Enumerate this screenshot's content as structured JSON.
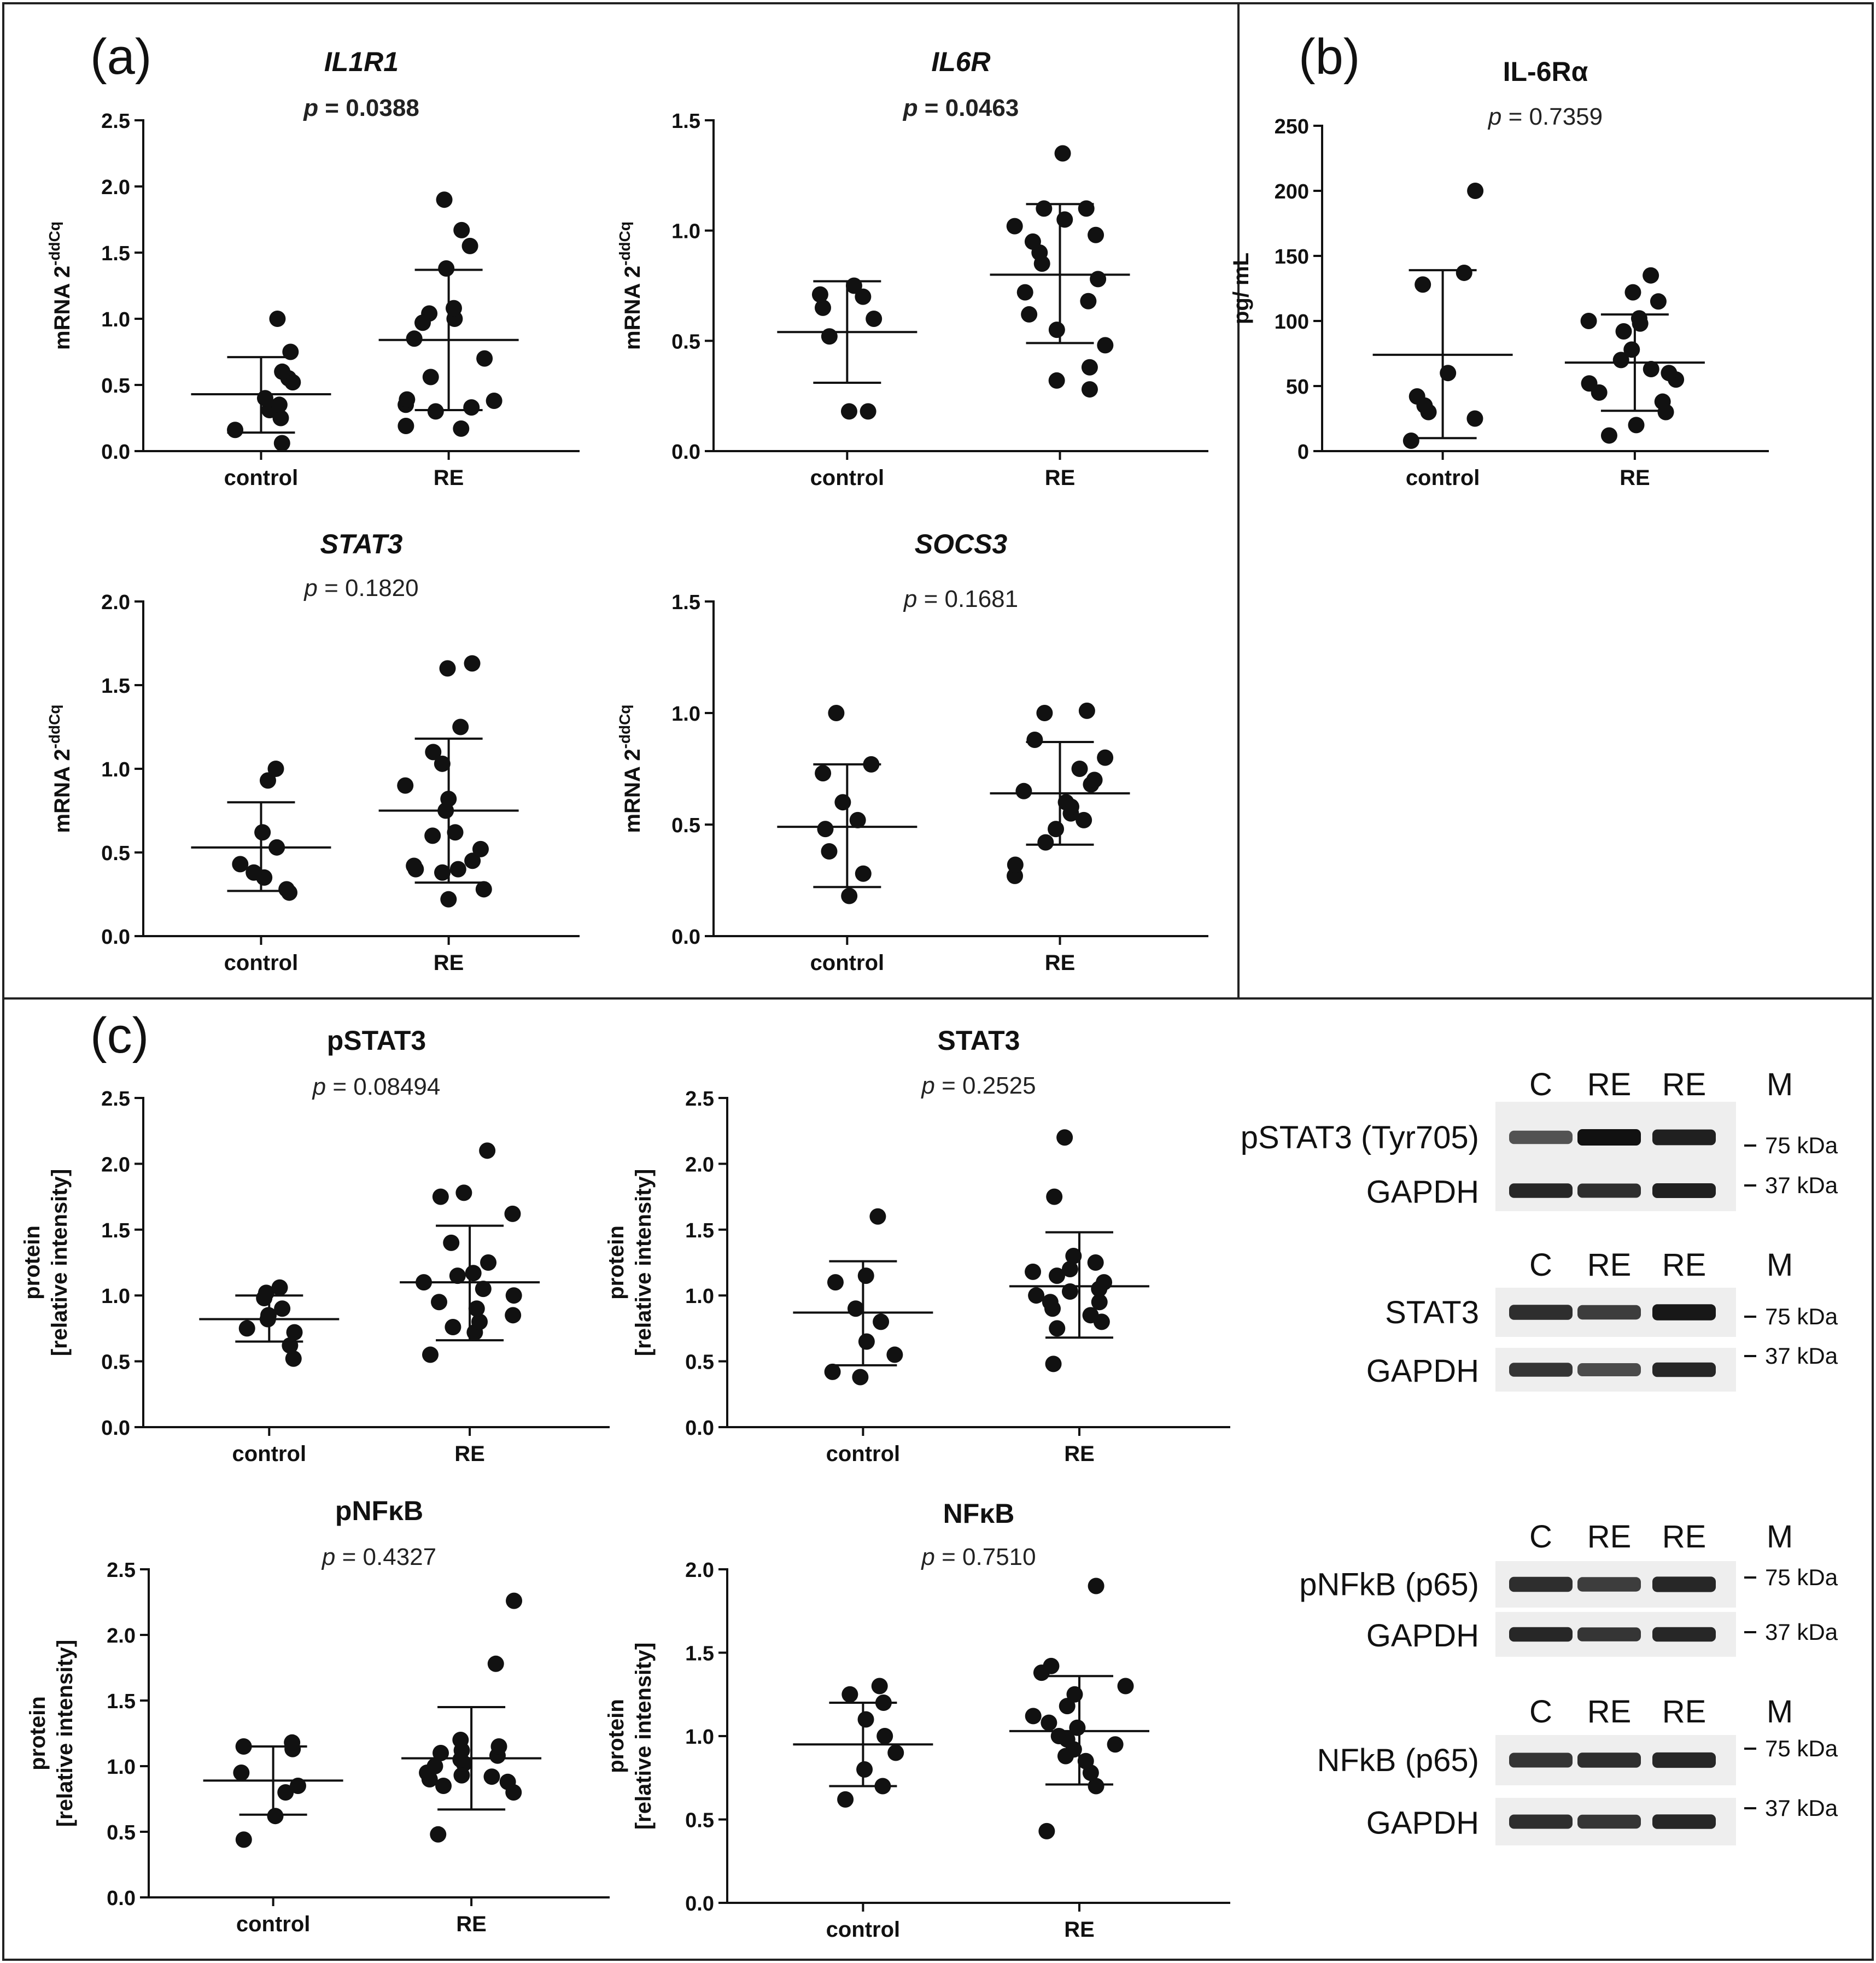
{
  "panel_labels": {
    "a": "(a)",
    "b": "(b)",
    "c": "(c)"
  },
  "units": {
    "kda75": "75 kDa",
    "kda37": "37 kDa"
  },
  "chart_data": [
    {
      "id": "il1r1",
      "panel": "a",
      "type": "scatter",
      "title": "IL1R1",
      "title_italic": true,
      "pvalue": "0.0388",
      "p_bold": true,
      "ylabel_main": "mRNA 2",
      "ylabel_sup": "-ddCq",
      "categories": [
        "control",
        "RE"
      ],
      "ylim": [
        0,
        2.5
      ],
      "yticks": [
        "0.0",
        "0.5",
        "1.0",
        "1.5",
        "2.0",
        "2.5"
      ],
      "points": [
        [
          0.06,
          0.16,
          0.25,
          0.31,
          0.35,
          0.4,
          0.52,
          0.55,
          0.6,
          0.75,
          1.0
        ],
        [
          0.17,
          0.19,
          0.3,
          0.33,
          0.35,
          0.38,
          0.39,
          0.56,
          0.7,
          0.85,
          1.0,
          1.04,
          1.08,
          1.38,
          1.55,
          1.67,
          1.9,
          0.97
        ]
      ],
      "mean": [
        0.43,
        0.84
      ],
      "sd_low": [
        0.14,
        0.31
      ],
      "sd_high": [
        0.71,
        1.37
      ]
    },
    {
      "id": "il6r",
      "panel": "a",
      "type": "scatter",
      "title": "IL6R",
      "title_italic": true,
      "pvalue": "0.0463",
      "p_bold": true,
      "ylabel_main": "mRNA 2",
      "ylabel_sup": "-ddCq",
      "categories": [
        "control",
        "RE"
      ],
      "ylim": [
        0,
        1.5
      ],
      "yticks": [
        "0.0",
        "0.5",
        "1.0",
        "1.5"
      ],
      "points": [
        [
          0.18,
          0.18,
          0.52,
          0.6,
          0.65,
          0.7,
          0.71,
          0.75
        ],
        [
          0.28,
          0.32,
          0.38,
          0.48,
          0.55,
          0.62,
          0.68,
          0.78,
          0.85,
          0.9,
          0.95,
          1.02,
          1.05,
          1.1,
          1.1,
          1.35,
          0.72,
          0.98
        ]
      ],
      "mean": [
        0.54,
        0.8
      ],
      "sd_low": [
        0.31,
        0.49
      ],
      "sd_high": [
        0.77,
        1.12
      ]
    },
    {
      "id": "stat3_mrna",
      "panel": "a",
      "type": "scatter",
      "title": "STAT3",
      "title_italic": true,
      "pvalue": "0.1820",
      "p_bold": false,
      "ylabel_main": "mRNA 2",
      "ylabel_sup": "-ddCq",
      "categories": [
        "control",
        "RE"
      ],
      "ylim": [
        0,
        2.0
      ],
      "yticks": [
        "0.0",
        "0.5",
        "1.0",
        "1.5",
        "2.0"
      ],
      "points": [
        [
          0.26,
          0.28,
          0.35,
          0.38,
          0.43,
          0.53,
          0.62,
          0.93,
          1.0
        ],
        [
          0.22,
          0.28,
          0.38,
          0.4,
          0.42,
          0.45,
          0.52,
          0.6,
          0.75,
          0.82,
          0.9,
          1.03,
          1.1,
          1.25,
          1.6,
          1.63,
          0.62,
          0.4
        ]
      ],
      "mean": [
        0.53,
        0.75
      ],
      "sd_low": [
        0.27,
        0.32
      ],
      "sd_high": [
        0.8,
        1.18
      ]
    },
    {
      "id": "socs3",
      "panel": "a",
      "type": "scatter",
      "title": "SOCS3",
      "title_italic": true,
      "pvalue": "0.1681",
      "p_bold": false,
      "ylabel_main": "mRNA 2",
      "ylabel_sup": "-ddCq",
      "categories": [
        "control",
        "RE"
      ],
      "ylim": [
        0,
        1.5
      ],
      "yticks": [
        "0.0",
        "0.5",
        "1.0",
        "1.5"
      ],
      "points": [
        [
          0.18,
          0.28,
          0.38,
          0.48,
          0.52,
          0.6,
          0.73,
          0.77,
          1.0
        ],
        [
          0.27,
          0.32,
          0.42,
          0.48,
          0.52,
          0.55,
          0.6,
          0.65,
          0.68,
          0.75,
          0.8,
          0.88,
          1.0,
          1.01,
          0.58,
          0.7
        ]
      ],
      "mean": [
        0.49,
        0.64
      ],
      "sd_low": [
        0.22,
        0.41
      ],
      "sd_high": [
        0.77,
        0.87
      ]
    },
    {
      "id": "il6ra",
      "panel": "b",
      "type": "scatter",
      "title": "IL-6Rα",
      "title_italic": false,
      "pvalue": "0.7359",
      "p_bold": false,
      "ylabel_main": "pg/ mL",
      "ylabel_sup": "",
      "categories": [
        "control",
        "RE"
      ],
      "ylim": [
        0,
        250
      ],
      "yticks": [
        "0",
        "50",
        "100",
        "150",
        "200",
        "250"
      ],
      "points": [
        [
          8,
          25,
          30,
          35,
          42,
          60,
          128,
          137,
          200
        ],
        [
          12,
          20,
          30,
          38,
          45,
          52,
          55,
          60,
          63,
          70,
          78,
          92,
          100,
          102,
          115,
          122,
          135,
          98
        ]
      ],
      "mean": [
        74,
        68
      ],
      "sd_low": [
        10,
        31
      ],
      "sd_high": [
        139,
        105
      ]
    },
    {
      "id": "pstat3",
      "panel": "c",
      "type": "scatter",
      "title": "pSTAT3",
      "title_italic": false,
      "pvalue": "0.08494",
      "p_bold": false,
      "ylabel_main": "protein",
      "ylabel_second": "[relative intensity]",
      "categories": [
        "control",
        "RE"
      ],
      "ylim": [
        0,
        2.5
      ],
      "yticks": [
        "0.0",
        "0.5",
        "1.0",
        "1.5",
        "2.0",
        "2.5"
      ],
      "points": [
        [
          0.52,
          0.62,
          0.72,
          0.75,
          0.82,
          0.85,
          0.9,
          0.98,
          1.02,
          1.06
        ],
        [
          0.55,
          0.72,
          0.76,
          0.8,
          0.85,
          0.9,
          0.95,
          1.0,
          1.05,
          1.1,
          1.15,
          1.17,
          1.25,
          1.4,
          1.62,
          1.75,
          1.78,
          2.1
        ]
      ],
      "mean": [
        0.82,
        1.1
      ],
      "sd_low": [
        0.65,
        0.66
      ],
      "sd_high": [
        1.0,
        1.53
      ]
    },
    {
      "id": "stat3_prot",
      "panel": "c",
      "type": "scatter",
      "title": "STAT3",
      "title_italic": false,
      "pvalue": "0.2525",
      "p_bold": false,
      "ylabel_main": "protein",
      "ylabel_second": "[relative intensity]",
      "categories": [
        "control",
        "RE"
      ],
      "ylim": [
        0,
        2.5
      ],
      "yticks": [
        "0.0",
        "0.5",
        "1.0",
        "1.5",
        "2.0",
        "2.5"
      ],
      "points": [
        [
          0.38,
          0.42,
          0.55,
          0.65,
          0.8,
          0.9,
          1.1,
          1.15,
          1.6
        ],
        [
          0.48,
          0.75,
          0.8,
          0.85,
          0.9,
          0.95,
          1.0,
          1.03,
          1.05,
          1.1,
          1.15,
          1.18,
          1.2,
          1.25,
          1.3,
          1.75,
          2.2,
          0.95
        ]
      ],
      "mean": [
        0.87,
        1.07
      ],
      "sd_low": [
        0.47,
        0.68
      ],
      "sd_high": [
        1.26,
        1.48
      ]
    },
    {
      "id": "pnfkb",
      "panel": "c",
      "type": "scatter",
      "title": "pNFκB",
      "title_italic": false,
      "pvalue": "0.4327",
      "p_bold": false,
      "ylabel_main": "protein",
      "ylabel_second": "[relative intensity]",
      "categories": [
        "control",
        "RE"
      ],
      "ylim": [
        0,
        2.5
      ],
      "yticks": [
        "0.0",
        "0.5",
        "1.0",
        "1.5",
        "2.0",
        "2.5"
      ],
      "points": [
        [
          0.44,
          0.62,
          0.8,
          0.85,
          0.95,
          1.13,
          1.15,
          1.18
        ],
        [
          0.48,
          0.8,
          0.85,
          0.88,
          0.9,
          0.93,
          0.95,
          1.0,
          1.02,
          1.05,
          1.08,
          1.1,
          1.12,
          1.15,
          1.2,
          1.78,
          2.26,
          0.92
        ]
      ],
      "mean": [
        0.89,
        1.06
      ],
      "sd_low": [
        0.63,
        0.67
      ],
      "sd_high": [
        1.15,
        1.45
      ]
    },
    {
      "id": "nfkb",
      "panel": "c",
      "type": "scatter",
      "title": "NFκB",
      "title_italic": false,
      "pvalue": "0.7510",
      "p_bold": false,
      "ylabel_main": "protein",
      "ylabel_second": "[relative intensity]",
      "categories": [
        "control",
        "RE"
      ],
      "ylim": [
        0,
        2.0
      ],
      "yticks": [
        "0.0",
        "0.5",
        "1.0",
        "1.5",
        "2.0"
      ],
      "points": [
        [
          0.62,
          0.7,
          0.8,
          0.9,
          1.0,
          1.1,
          1.2,
          1.25,
          1.3
        ],
        [
          0.43,
          0.7,
          0.78,
          0.85,
          0.88,
          0.92,
          0.95,
          1.0,
          1.05,
          1.08,
          1.12,
          1.18,
          1.25,
          1.3,
          1.38,
          1.42,
          1.9,
          0.98
        ]
      ],
      "mean": [
        0.95,
        1.03
      ],
      "sd_low": [
        0.7,
        0.71
      ],
      "sd_high": [
        1.2,
        1.36
      ]
    }
  ],
  "blots": [
    {
      "id": "blot-pstat3",
      "lanes": [
        "C",
        "RE",
        "RE",
        "M"
      ],
      "target": "pSTAT3 (Tyr705)",
      "loading": "GAPDH",
      "target_intensity": [
        0.55,
        1.0,
        0.9
      ],
      "loading_intensity": [
        0.85,
        0.8,
        0.9
      ]
    },
    {
      "id": "blot-stat3",
      "lanes": [
        "C",
        "RE",
        "RE",
        "M"
      ],
      "target": "STAT3",
      "loading": "GAPDH",
      "target_intensity": [
        0.8,
        0.7,
        0.95
      ],
      "loading_intensity": [
        0.75,
        0.6,
        0.85
      ]
    },
    {
      "id": "blot-pnfkb",
      "lanes": [
        "C",
        "RE",
        "RE",
        "M"
      ],
      "target": "pNFkB (p65)",
      "loading": "GAPDH",
      "target_intensity": [
        0.8,
        0.7,
        0.85
      ],
      "loading_intensity": [
        0.85,
        0.75,
        0.85
      ]
    },
    {
      "id": "blot-nfkb",
      "lanes": [
        "C",
        "RE",
        "RE",
        "M"
      ],
      "target": "NFkB (p65)",
      "loading": "GAPDH",
      "target_intensity": [
        0.75,
        0.8,
        0.85
      ],
      "loading_intensity": [
        0.8,
        0.75,
        0.85
      ]
    }
  ]
}
